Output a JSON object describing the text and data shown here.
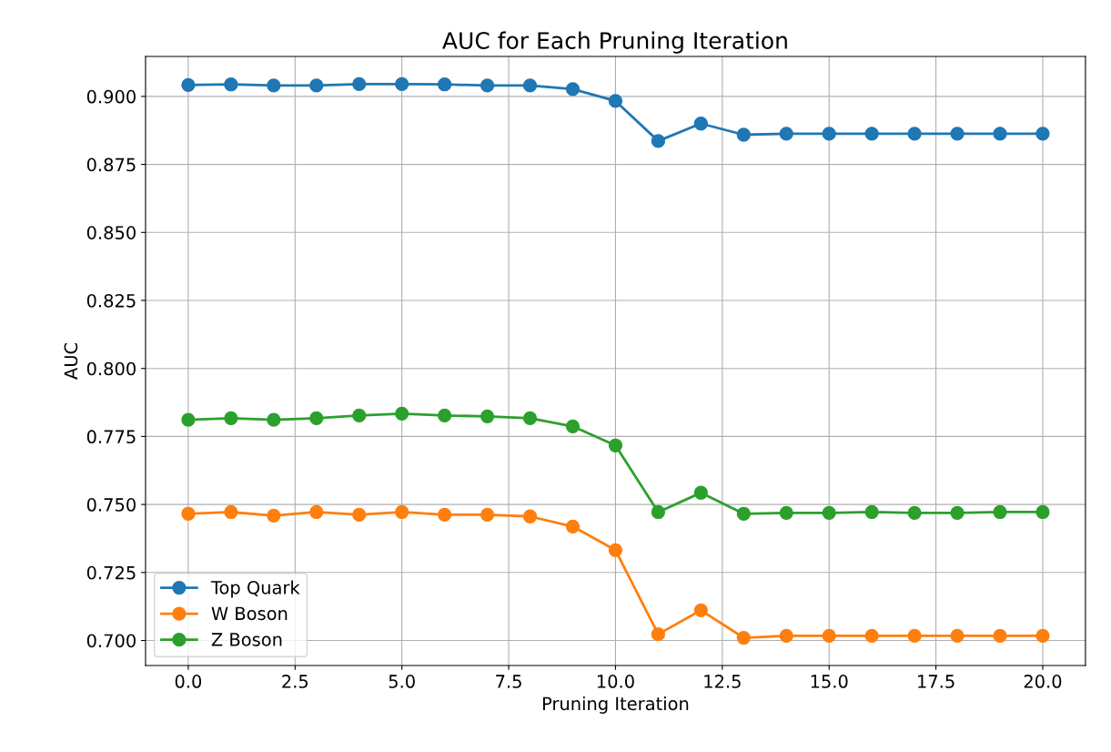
{
  "chart_data": {
    "type": "line",
    "title": "AUC for Each Pruning Iteration",
    "xlabel": "Pruning Iteration",
    "ylabel": "AUC",
    "x": [
      0,
      1,
      2,
      3,
      4,
      5,
      6,
      7,
      8,
      9,
      10,
      11,
      12,
      13,
      14,
      15,
      16,
      17,
      18,
      19,
      20
    ],
    "series": [
      {
        "name": "Top Quark",
        "color": "#1f77b4",
        "values": [
          0.9042,
          0.9044,
          0.904,
          0.904,
          0.9045,
          0.9045,
          0.9044,
          0.904,
          0.904,
          0.9027,
          0.8983,
          0.8836,
          0.89,
          0.8859,
          0.8863,
          0.8863,
          0.8863,
          0.8863,
          0.8863,
          0.8863,
          0.8863
        ]
      },
      {
        "name": "W Boson",
        "color": "#ff7f0e",
        "values": [
          0.7466,
          0.7472,
          0.7459,
          0.7472,
          0.7462,
          0.7472,
          0.7462,
          0.7462,
          0.7456,
          0.7419,
          0.7332,
          0.7023,
          0.7111,
          0.701,
          0.7017,
          0.7017,
          0.7017,
          0.7017,
          0.7017,
          0.7017,
          0.7017
        ]
      },
      {
        "name": "Z Boson",
        "color": "#2ca02c",
        "values": [
          0.7811,
          0.7817,
          0.7811,
          0.7817,
          0.7827,
          0.7834,
          0.7827,
          0.7824,
          0.7817,
          0.7787,
          0.7717,
          0.7472,
          0.7543,
          0.7466,
          0.7469,
          0.7469,
          0.7472,
          0.7469,
          0.7469,
          0.7472,
          0.7472
        ]
      }
    ],
    "xlim": [
      -1,
      21
    ],
    "xticks": [
      {
        "value": 0,
        "label": "0.0"
      },
      {
        "value": 2.5,
        "label": "2.5"
      },
      {
        "value": 5,
        "label": "5.0"
      },
      {
        "value": 7.5,
        "label": "7.5"
      },
      {
        "value": 10,
        "label": "10.0"
      },
      {
        "value": 12.5,
        "label": "12.5"
      },
      {
        "value": 15,
        "label": "15.0"
      },
      {
        "value": 17.5,
        "label": "17.5"
      },
      {
        "value": 20,
        "label": "20.0"
      }
    ],
    "ylim": [
      0.6908,
      0.9147
    ],
    "yticks": [
      {
        "value": 0.7,
        "label": "0.700"
      },
      {
        "value": 0.725,
        "label": "0.725"
      },
      {
        "value": 0.75,
        "label": "0.750"
      },
      {
        "value": 0.775,
        "label": "0.775"
      },
      {
        "value": 0.8,
        "label": "0.800"
      },
      {
        "value": 0.825,
        "label": "0.825"
      },
      {
        "value": 0.85,
        "label": "0.850"
      },
      {
        "value": 0.875,
        "label": "0.875"
      },
      {
        "value": 0.9,
        "label": "0.900"
      }
    ],
    "grid": true,
    "legend": "bottom left",
    "marker": "circle",
    "line_style": "solid"
  }
}
